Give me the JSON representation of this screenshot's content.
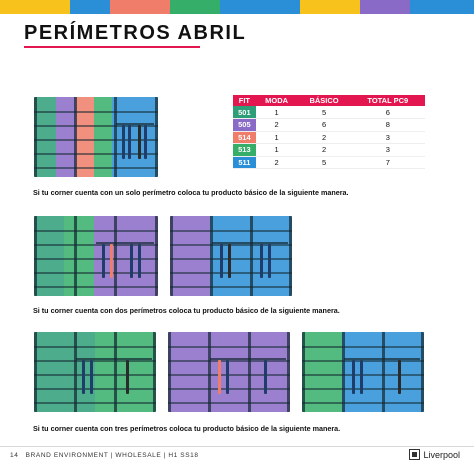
{
  "page": {
    "title": "PERÍMETROS ABRIL",
    "accent": "#e3164f"
  },
  "table": {
    "headers": [
      "FIT",
      "MODA",
      "BÁSICO",
      "TOTAL PC9"
    ],
    "rows": [
      {
        "fit": "501",
        "moda": "1",
        "basico": "5",
        "total": "6",
        "color": "#2e9e78"
      },
      {
        "fit": "505",
        "moda": "2",
        "basico": "6",
        "total": "8",
        "color": "#8a6ac7"
      },
      {
        "fit": "514",
        "moda": "1",
        "basico": "2",
        "total": "3",
        "color": "#f07c6a"
      },
      {
        "fit": "513",
        "moda": "1",
        "basico": "2",
        "total": "3",
        "color": "#35ae6a"
      },
      {
        "fit": "511",
        "moda": "2",
        "basico": "5",
        "total": "7",
        "color": "#2a8fd6"
      }
    ]
  },
  "captions": {
    "one": "Si tu corner cuenta con un solo perímetro coloca tu producto básico de la siguiente manera.",
    "two": "Si tu corner cuenta con dos perímetros coloca tu producto básico de la siguiente manera.",
    "three": "Si tu corner cuenta con tres perímetros coloca tu producto básico de la siguiente manera."
  },
  "footer": {
    "page_number": "14",
    "text": "BRAND ENVIRONMENT  |  WHOLESALE  |  H1 SS18",
    "brand": "Liverpool"
  }
}
